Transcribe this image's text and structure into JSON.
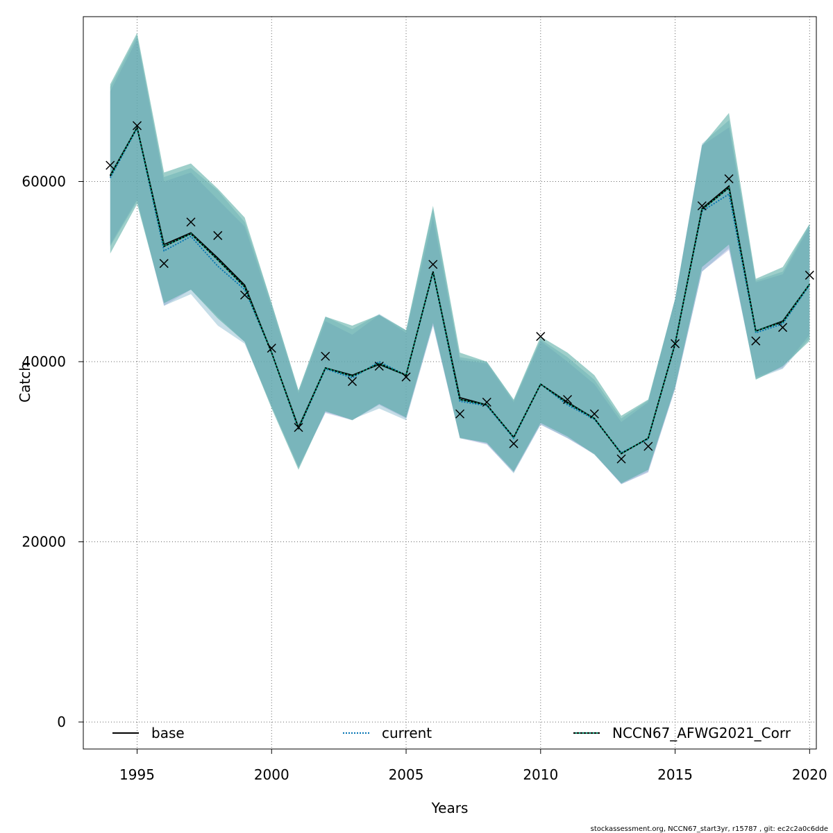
{
  "chart_data": {
    "type": "line",
    "xlabel": "Years",
    "ylabel": "Catch",
    "xlim": [
      1993.0,
      2020.25
    ],
    "ylim": [
      -3000,
      78300
    ],
    "xticks": [
      1995,
      2000,
      2005,
      2010,
      2015,
      2020
    ],
    "yticks": [
      0,
      20000,
      40000,
      60000
    ],
    "xtick_labels": [
      "1995",
      "2000",
      "2005",
      "2010",
      "2015",
      "2020"
    ],
    "ytick_labels": [
      "0",
      "20000",
      "40000",
      "60000"
    ],
    "grid": true,
    "legend_position": "bottom",
    "years": [
      1994,
      1995,
      1996,
      1997,
      1998,
      1999,
      2000,
      2001,
      2002,
      2003,
      2004,
      2005,
      2006,
      2007,
      2008,
      2009,
      2010,
      2011,
      2012,
      2013,
      2014,
      2015,
      2016,
      2017,
      2018,
      2019,
      2020
    ],
    "observed": [
      61800,
      66200,
      50900,
      55500,
      54000,
      47400,
      41500,
      32700,
      40600,
      37800,
      39500,
      38300,
      50800,
      34200,
      35500,
      30900,
      42800,
      35800,
      34200,
      29200,
      30600,
      42000,
      57300,
      60300,
      42300,
      43800,
      49600
    ],
    "series": [
      {
        "name": "base",
        "color": "#000000",
        "dash": "solid",
        "values": [
          60700,
          66000,
          53000,
          54300,
          51500,
          48500,
          41000,
          32700,
          39300,
          38500,
          39700,
          38500,
          50000,
          36000,
          35200,
          31600,
          37500,
          35500,
          33700,
          29800,
          31500,
          42000,
          57000,
          59500,
          43400,
          44500,
          48600
        ],
        "upper": [
          70000,
          75800,
          60000,
          61000,
          58000,
          55000,
          46000,
          36500,
          44500,
          43000,
          45200,
          43200,
          56000,
          40200,
          39800,
          35500,
          42300,
          40000,
          37500,
          33300,
          35500,
          47000,
          64000,
          66000,
          48800,
          49700,
          55000
        ],
        "lower": [
          53000,
          58000,
          46200,
          48000,
          45000,
          42200,
          35000,
          28300,
          34300,
          33500,
          35200,
          33700,
          44000,
          31500,
          30800,
          27700,
          33000,
          31500,
          29700,
          26400,
          27700,
          37000,
          50000,
          52400,
          38300,
          39300,
          43000
        ]
      },
      {
        "name": "current",
        "color": "#0072b2",
        "dash": "dotted",
        "values": [
          60400,
          65900,
          52300,
          53900,
          50600,
          48000,
          41000,
          32500,
          39200,
          38200,
          40000,
          38500,
          49900,
          35600,
          35100,
          31500,
          37500,
          35200,
          33600,
          29900,
          31400,
          42100,
          56700,
          58600,
          43200,
          44200,
          48500
        ],
        "upper": [
          70500,
          76200,
          60500,
          61500,
          59000,
          55500,
          46500,
          36800,
          45000,
          43600,
          45300,
          43500,
          57000,
          40500,
          40000,
          35700,
          42500,
          40500,
          38000,
          33700,
          35700,
          47000,
          64200,
          66800,
          49000,
          50000,
          55300
        ],
        "lower": [
          52800,
          57800,
          46200,
          47500,
          44000,
          42000,
          35000,
          28200,
          34400,
          33600,
          34800,
          33500,
          44000,
          31600,
          30900,
          27600,
          33000,
          31500,
          29800,
          26400,
          27800,
          37000,
          50000,
          52600,
          38100,
          39200,
          42600
        ]
      },
      {
        "name": "NCCN67_AFWG2021_Corr",
        "color": "#009e73",
        "dash": "dashed",
        "values": [
          60600,
          66000,
          52800,
          54200,
          51300,
          48300,
          41000,
          32600,
          39300,
          38400,
          39800,
          38500,
          50000,
          35800,
          35200,
          31600,
          37500,
          35400,
          33700,
          29800,
          31500,
          42000,
          56900,
          59300,
          43400,
          44400,
          48600
        ],
        "upper": [
          70800,
          76500,
          61000,
          62000,
          59200,
          56000,
          46500,
          36800,
          45000,
          44000,
          45200,
          43500,
          57300,
          41000,
          40000,
          35800,
          42800,
          41000,
          38500,
          34000,
          35800,
          47000,
          64000,
          67600,
          49200,
          50500,
          55300
        ],
        "lower": [
          52000,
          57500,
          46500,
          48000,
          44800,
          42200,
          34800,
          28000,
          34500,
          33500,
          35300,
          33800,
          44300,
          31500,
          31000,
          27800,
          33200,
          31700,
          29700,
          26500,
          28000,
          37200,
          50500,
          53000,
          38000,
          39500,
          42300
        ]
      }
    ]
  },
  "footer_text": "stockassessment.org, NCCN67_start3yr, r15787 , git: ec2c2a0c6dde"
}
